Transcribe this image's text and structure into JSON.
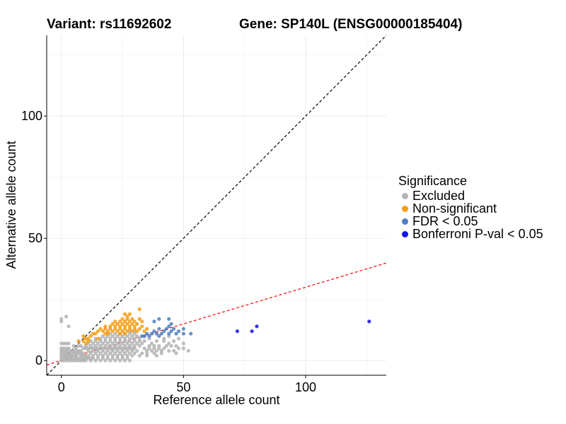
{
  "title_left": "Variant: rs11692602",
  "title_right": "Gene: SP140L (ENSG00000185404)",
  "legend": {
    "title": "Significance",
    "items": [
      {
        "label": "Excluded",
        "color": "#b3b3b3"
      },
      {
        "label": "Non-significant",
        "color": "#f59d16"
      },
      {
        "label": "FDR < 0.05",
        "color": "#4f7fc0"
      },
      {
        "label": "Bonferroni P-val < 0.05",
        "color": "#1010f0"
      }
    ]
  },
  "chart_data": {
    "type": "scatter",
    "xlabel": "Reference allele count",
    "ylabel": "Alternative allele count",
    "xlim": [
      -6,
      133
    ],
    "ylim": [
      -6,
      133
    ],
    "xticks": [
      0,
      50,
      100
    ],
    "yticks": [
      0,
      50,
      100
    ],
    "grid": true,
    "reference_lines": [
      {
        "name": "identity",
        "slope": 1,
        "intercept": 0,
        "color": "#000000",
        "style": "dashed"
      },
      {
        "name": "fit",
        "slope": 0.3,
        "intercept": 0,
        "color": "#ff0000",
        "style": "dashed"
      }
    ],
    "series": [
      {
        "name": "Excluded",
        "color": "#b3b3b3",
        "points": [
          [
            0,
            17
          ],
          [
            2,
            18
          ],
          [
            0,
            16
          ],
          [
            3,
            14
          ],
          [
            0,
            7
          ],
          [
            1,
            7
          ],
          [
            2,
            7
          ],
          [
            3,
            7
          ],
          [
            0,
            5
          ],
          [
            1,
            5
          ],
          [
            2,
            5
          ],
          [
            3,
            5
          ],
          [
            0,
            4
          ],
          [
            1,
            4
          ],
          [
            2,
            4
          ],
          [
            3,
            4
          ],
          [
            4,
            4
          ],
          [
            0,
            3
          ],
          [
            1,
            3
          ],
          [
            2,
            3
          ],
          [
            3,
            3
          ],
          [
            4,
            3
          ],
          [
            5,
            3
          ],
          [
            0,
            2
          ],
          [
            1,
            2
          ],
          [
            2,
            2
          ],
          [
            3,
            2
          ],
          [
            4,
            2
          ],
          [
            5,
            2
          ],
          [
            6,
            2
          ],
          [
            0,
            1
          ],
          [
            1,
            1
          ],
          [
            2,
            1
          ],
          [
            3,
            1
          ],
          [
            4,
            1
          ],
          [
            5,
            1
          ],
          [
            6,
            1
          ],
          [
            7,
            1
          ],
          [
            0,
            0
          ],
          [
            1,
            0
          ],
          [
            2,
            0
          ],
          [
            3,
            0
          ],
          [
            4,
            0
          ],
          [
            5,
            0
          ],
          [
            6,
            0
          ],
          [
            7,
            0
          ],
          [
            8,
            0
          ],
          [
            9,
            0
          ],
          [
            10,
            0
          ],
          [
            5,
            4
          ],
          [
            6,
            4
          ],
          [
            7,
            4
          ],
          [
            8,
            4
          ],
          [
            6,
            3
          ],
          [
            7,
            3
          ],
          [
            8,
            3
          ],
          [
            9,
            3
          ],
          [
            8,
            2
          ],
          [
            9,
            2
          ],
          [
            10,
            2
          ],
          [
            11,
            2
          ],
          [
            8,
            1
          ],
          [
            9,
            1
          ],
          [
            10,
            1
          ],
          [
            11,
            1
          ],
          [
            12,
            1
          ],
          [
            13,
            1
          ],
          [
            12,
            0
          ],
          [
            14,
            0
          ],
          [
            16,
            0
          ],
          [
            18,
            0
          ],
          [
            20,
            0
          ],
          [
            22,
            0
          ],
          [
            24,
            0
          ],
          [
            26,
            0
          ],
          [
            28,
            0
          ],
          [
            9,
            5
          ],
          [
            10,
            5
          ],
          [
            11,
            5
          ],
          [
            12,
            5
          ],
          [
            13,
            5
          ],
          [
            14,
            5
          ],
          [
            15,
            5
          ],
          [
            16,
            5
          ],
          [
            17,
            5
          ],
          [
            18,
            5
          ],
          [
            19,
            5
          ],
          [
            20,
            5
          ],
          [
            21,
            5
          ],
          [
            22,
            5
          ],
          [
            23,
            5
          ],
          [
            24,
            5
          ],
          [
            25,
            5
          ],
          [
            26,
            5
          ],
          [
            27,
            5
          ],
          [
            28,
            5
          ],
          [
            29,
            5
          ],
          [
            30,
            5
          ],
          [
            10,
            6
          ],
          [
            12,
            6
          ],
          [
            14,
            6
          ],
          [
            16,
            6
          ],
          [
            18,
            6
          ],
          [
            20,
            6
          ],
          [
            22,
            6
          ],
          [
            24,
            6
          ],
          [
            26,
            6
          ],
          [
            28,
            6
          ],
          [
            30,
            6
          ],
          [
            32,
            6
          ],
          [
            11,
            4
          ],
          [
            13,
            4
          ],
          [
            15,
            4
          ],
          [
            17,
            4
          ],
          [
            19,
            4
          ],
          [
            21,
            4
          ],
          [
            23,
            4
          ],
          [
            25,
            4
          ],
          [
            27,
            4
          ],
          [
            29,
            4
          ],
          [
            31,
            4
          ],
          [
            12,
            3
          ],
          [
            14,
            3
          ],
          [
            16,
            3
          ],
          [
            18,
            3
          ],
          [
            20,
            3
          ],
          [
            22,
            3
          ],
          [
            24,
            3
          ],
          [
            26,
            3
          ],
          [
            28,
            3
          ],
          [
            30,
            3
          ],
          [
            13,
            2
          ],
          [
            15,
            2
          ],
          [
            17,
            2
          ],
          [
            19,
            2
          ],
          [
            21,
            2
          ],
          [
            23,
            2
          ],
          [
            25,
            2
          ],
          [
            27,
            2
          ],
          [
            29,
            2
          ],
          [
            15,
            1
          ],
          [
            17,
            1
          ],
          [
            19,
            1
          ],
          [
            21,
            1
          ],
          [
            23,
            1
          ],
          [
            25,
            1
          ],
          [
            27,
            1
          ],
          [
            11,
            7
          ],
          [
            13,
            7
          ],
          [
            15,
            7
          ],
          [
            17,
            7
          ],
          [
            19,
            7
          ],
          [
            21,
            7
          ],
          [
            23,
            7
          ],
          [
            25,
            7
          ],
          [
            27,
            7
          ],
          [
            29,
            7
          ],
          [
            31,
            7
          ],
          [
            33,
            7
          ],
          [
            12,
            8
          ],
          [
            14,
            8
          ],
          [
            16,
            8
          ],
          [
            18,
            8
          ],
          [
            20,
            8
          ],
          [
            22,
            8
          ],
          [
            24,
            8
          ],
          [
            26,
            8
          ],
          [
            28,
            8
          ],
          [
            30,
            8
          ],
          [
            32,
            8
          ],
          [
            34,
            8
          ],
          [
            14,
            9
          ],
          [
            16,
            9
          ],
          [
            18,
            9
          ],
          [
            20,
            9
          ],
          [
            22,
            9
          ],
          [
            24,
            9
          ],
          [
            26,
            9
          ],
          [
            28,
            9
          ],
          [
            30,
            9
          ],
          [
            32,
            9
          ],
          [
            17,
            10
          ],
          [
            19,
            10
          ],
          [
            21,
            10
          ],
          [
            23,
            10
          ],
          [
            25,
            10
          ],
          [
            27,
            10
          ],
          [
            29,
            10
          ],
          [
            31,
            10
          ],
          [
            20,
            11
          ],
          [
            22,
            11
          ],
          [
            24,
            11
          ],
          [
            26,
            11
          ],
          [
            28,
            11
          ],
          [
            30,
            11
          ],
          [
            34,
            5
          ],
          [
            36,
            5
          ],
          [
            38,
            5
          ],
          [
            40,
            5
          ],
          [
            42,
            5
          ],
          [
            35,
            4
          ],
          [
            37,
            4
          ],
          [
            39,
            4
          ],
          [
            41,
            4
          ],
          [
            44,
            4
          ],
          [
            46,
            4
          ],
          [
            36,
            6
          ],
          [
            38,
            6
          ],
          [
            40,
            6
          ],
          [
            45,
            6
          ],
          [
            47,
            6
          ],
          [
            48,
            5
          ],
          [
            50,
            7
          ],
          [
            33,
            3
          ],
          [
            35,
            3
          ],
          [
            38,
            3
          ],
          [
            41,
            3
          ],
          [
            32,
            2
          ],
          [
            35,
            2
          ],
          [
            39,
            2
          ],
          [
            43,
            6
          ],
          [
            44,
            7
          ],
          [
            42,
            8
          ],
          [
            37,
            7
          ],
          [
            39,
            8
          ],
          [
            46,
            8
          ],
          [
            48,
            9
          ],
          [
            36,
            9
          ],
          [
            34,
            10
          ],
          [
            50,
            5
          ],
          [
            47,
            3
          ],
          [
            52,
            4
          ],
          [
            42,
            9
          ],
          [
            44,
            10
          ],
          [
            28,
            12
          ],
          [
            30,
            12
          ],
          [
            8,
            6
          ],
          [
            6,
            5
          ],
          [
            7,
            6
          ],
          [
            5,
            6
          ]
        ]
      },
      {
        "name": "Non-significant",
        "color": "#f59d16",
        "points": [
          [
            16,
            13
          ],
          [
            18,
            13
          ],
          [
            20,
            13
          ],
          [
            22,
            13
          ],
          [
            24,
            13
          ],
          [
            26,
            13
          ],
          [
            28,
            13
          ],
          [
            30,
            13
          ],
          [
            32,
            13
          ],
          [
            17,
            12
          ],
          [
            19,
            12
          ],
          [
            21,
            12
          ],
          [
            23,
            12
          ],
          [
            25,
            12
          ],
          [
            27,
            12
          ],
          [
            29,
            12
          ],
          [
            31,
            12
          ],
          [
            18,
            14
          ],
          [
            20,
            14
          ],
          [
            22,
            14
          ],
          [
            24,
            14
          ],
          [
            26,
            14
          ],
          [
            28,
            14
          ],
          [
            30,
            14
          ],
          [
            21,
            15
          ],
          [
            23,
            15
          ],
          [
            25,
            15
          ],
          [
            27,
            15
          ],
          [
            29,
            15
          ],
          [
            31,
            15
          ],
          [
            22,
            16
          ],
          [
            24,
            16
          ],
          [
            26,
            16
          ],
          [
            28,
            16
          ],
          [
            30,
            16
          ],
          [
            25,
            17
          ],
          [
            27,
            17
          ],
          [
            29,
            17
          ],
          [
            27,
            18
          ],
          [
            28,
            19
          ],
          [
            26,
            19
          ],
          [
            32,
            21
          ],
          [
            33,
            14
          ],
          [
            15,
            12
          ],
          [
            14,
            11
          ],
          [
            13,
            11
          ],
          [
            12,
            10
          ],
          [
            11,
            9
          ],
          [
            10,
            9
          ],
          [
            9,
            10
          ],
          [
            7,
            8
          ],
          [
            15,
            9
          ],
          [
            11,
            8
          ],
          [
            10,
            7
          ],
          [
            9,
            8
          ],
          [
            26,
            11
          ],
          [
            24,
            11
          ],
          [
            19,
            11
          ],
          [
            18,
            11
          ],
          [
            34,
            12
          ],
          [
            35,
            13
          ],
          [
            32,
            17
          ],
          [
            33,
            16
          ]
        ]
      },
      {
        "name": "FDR < 0.05",
        "color": "#4f7fc0",
        "points": [
          [
            36,
            10
          ],
          [
            37,
            11
          ],
          [
            38,
            12
          ],
          [
            39,
            11
          ],
          [
            40,
            13
          ],
          [
            40,
            10
          ],
          [
            41,
            11
          ],
          [
            42,
            12
          ],
          [
            43,
            13
          ],
          [
            44,
            11
          ],
          [
            44,
            14
          ],
          [
            45,
            12
          ],
          [
            45,
            15
          ],
          [
            46,
            13
          ],
          [
            47,
            11
          ],
          [
            48,
            12
          ],
          [
            50,
            11
          ],
          [
            50,
            13
          ],
          [
            53,
            11
          ],
          [
            38,
            16
          ],
          [
            40,
            17
          ],
          [
            44,
            17
          ],
          [
            35,
            11
          ],
          [
            34,
            10
          ],
          [
            33,
            10
          ]
        ]
      },
      {
        "name": "Bonferroni P-val < 0.05",
        "color": "#1010f0",
        "points": [
          [
            72,
            12
          ],
          [
            78,
            12
          ],
          [
            80,
            14
          ],
          [
            126,
            16
          ]
        ]
      }
    ]
  }
}
